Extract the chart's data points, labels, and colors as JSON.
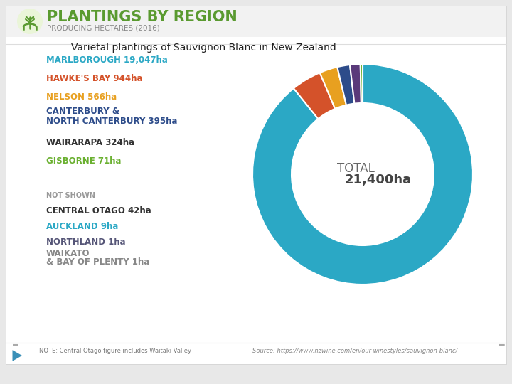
{
  "title": "Varietal plantings of Sauvignon Blanc in New Zealand",
  "header_title": "PLANTINGS BY REGION",
  "header_subtitle": "PRODUCING HECTARES (2016)",
  "total_label_plain": "TOTAL ",
  "total_label_bold": "21,400ha",
  "background_color": "#e8e8e8",
  "chart_bg": "#ffffff",
  "regions": [
    {
      "name": "MARLBOROUGH",
      "value": 19047,
      "color": "#2ba8c5",
      "name_color": "#2ba8c5",
      "val_color": "#2ba8c5"
    },
    {
      "name": "HAWKE'S BAY",
      "value": 944,
      "color": "#d4522a",
      "name_color": "#d4522a",
      "val_color": "#d4522a"
    },
    {
      "name": "NELSON",
      "value": 566,
      "color": "#e8a020",
      "name_color": "#e8a020",
      "val_color": "#e8a020"
    },
    {
      "name": "CANTERBURY &\nNORTH CANTERBURY",
      "value": 395,
      "color": "#2d4c8a",
      "name_color": "#2d4c8a",
      "val_color": "#2d4c8a",
      "val_suffix": "395ha"
    },
    {
      "name": "WAIRARAPA",
      "value": 324,
      "color": "#5a3a7a",
      "name_color": "#333333",
      "val_color": "#333333"
    },
    {
      "name": "GISBORNE",
      "value": 71,
      "color": "#6ab030",
      "name_color": "#6ab030",
      "val_color": "#6ab030"
    }
  ],
  "not_shown_label": "NOT SHOWN",
  "not_shown": [
    {
      "label": "CENTRAL OTAGO 42ha",
      "label_color": "#333333"
    },
    {
      "label": "AUCKLAND 9ha",
      "label_color": "#2ba8c5"
    },
    {
      "label": "NORTHLAND 1ha",
      "label_color": "#555577"
    },
    {
      "label": "WAIKATO\n& BAY OF PLENTY 1ha",
      "label_color": "#888888"
    }
  ],
  "note": "NOTE: Central Otago figure includes Waitaki Valley",
  "source": "Source: https://www.nzwine.com/en/our-winestyles/sauvignon-blanc/",
  "header_title_color": "#5a9a30",
  "header_subtitle_color": "#888888",
  "total_color": "#555555",
  "total_bold_color": "#333333"
}
